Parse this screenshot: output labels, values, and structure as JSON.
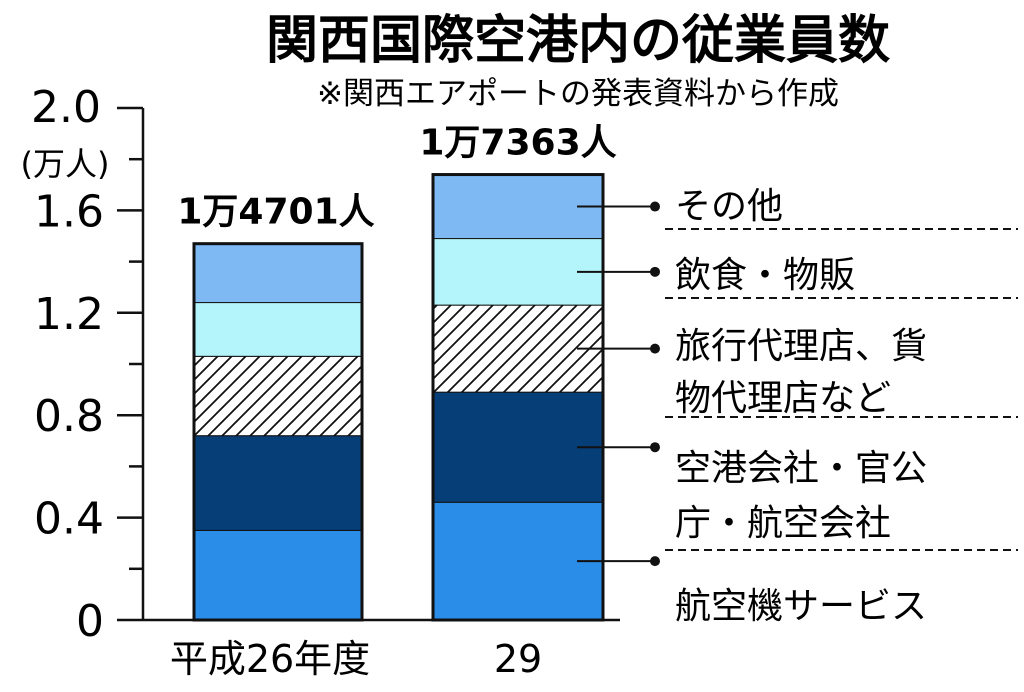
{
  "chart_data": {
    "type": "bar",
    "stacked": true,
    "title": "関西国際空港内の従業員数",
    "subtitle": "※関西エアポートの発表資料から作成",
    "ylabel": "(万人)",
    "ylim": [
      0,
      2.0
    ],
    "yticks": [
      "2.0",
      "1.6",
      "1.2",
      "0.8",
      "0.4",
      "0"
    ],
    "categories": [
      "平成26年度",
      "29"
    ],
    "totals": [
      "1万4701人",
      "1万7363人"
    ],
    "series": [
      {
        "name": "航空機サービス",
        "values": [
          0.35,
          0.46
        ],
        "color": "#2a8de8"
      },
      {
        "name": "空港会社・官公庁・航空会社",
        "values": [
          0.37,
          0.43
        ],
        "color": "#063e78"
      },
      {
        "name": "旅行代理店、貨物代理店など",
        "values": [
          0.31,
          0.34
        ],
        "color": "#ffffff",
        "hatch": true
      },
      {
        "name": "飲食・物販",
        "values": [
          0.21,
          0.26
        ],
        "color": "#b3f5fb"
      },
      {
        "name": "その他",
        "values": [
          0.23,
          0.25
        ],
        "color": "#7eb9f4"
      }
    ],
    "legend_lines": [
      [
        "航空機サービス"
      ],
      [
        "空港会社・官公",
        "庁・航空会社"
      ],
      [
        "旅行代理店、貨",
        "物代理店など"
      ],
      [
        "飲食・物販"
      ],
      [
        "その他"
      ]
    ],
    "legend_position": "right",
    "grid": false
  }
}
